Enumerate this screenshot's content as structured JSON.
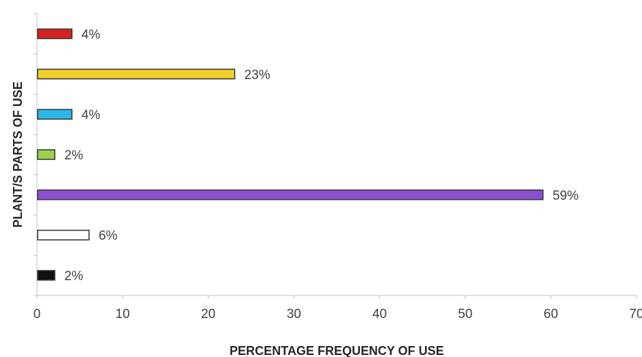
{
  "chart_data": {
    "type": "bar",
    "orientation": "horizontal",
    "xlabel": "PERCENTAGE FREQUENCY OF USE",
    "ylabel": "PLANT/S PARTS OF USE",
    "xlim": [
      0,
      70
    ],
    "xticks": [
      0,
      10,
      20,
      30,
      40,
      50,
      60,
      70
    ],
    "grid": false,
    "legend": "none",
    "values": [
      4,
      23,
      4,
      2,
      59,
      6,
      2
    ],
    "labels": [
      "4%",
      "23%",
      "4%",
      "2%",
      "59%",
      "6%",
      "2%"
    ],
    "colors": [
      "#d42020",
      "#f2d02a",
      "#2ab8e6",
      "#9ed14e",
      "#8a4fcf",
      "#ffffff",
      "#111111"
    ]
  }
}
